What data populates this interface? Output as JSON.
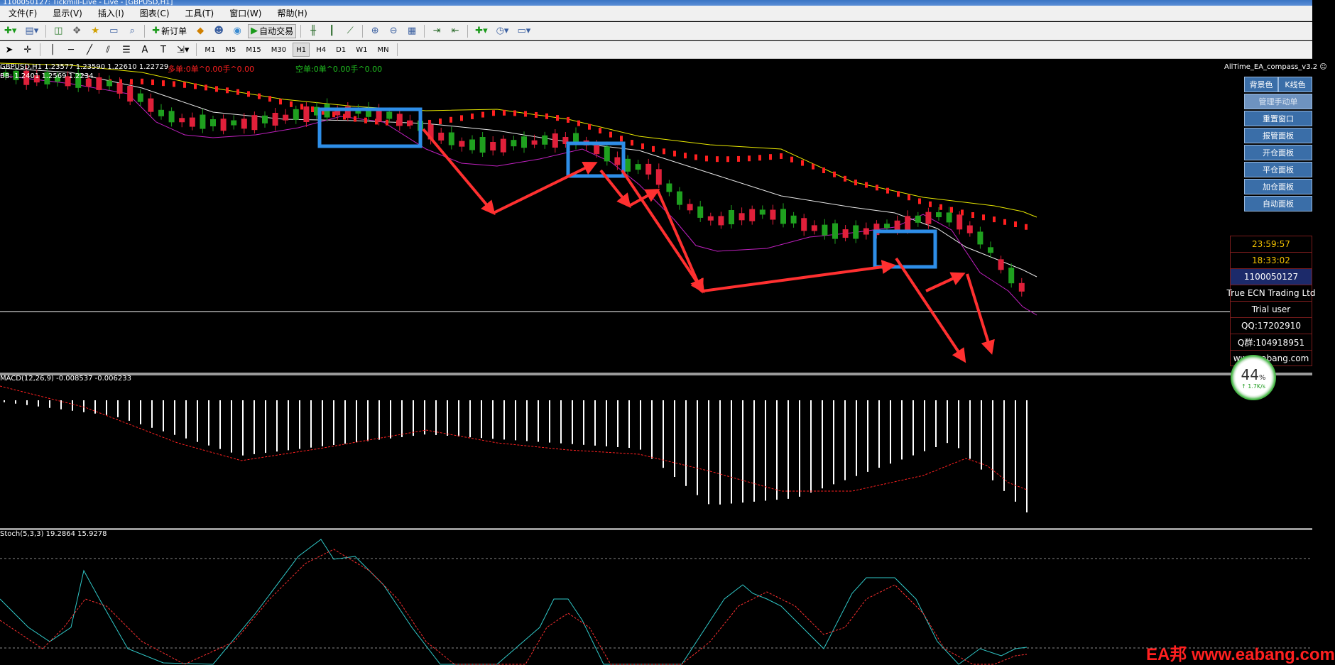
{
  "window": {
    "title": "1100050127: Tickmill-Live - Live - [GBPUSD,H1]"
  },
  "menu": [
    {
      "label": "文件(F)"
    },
    {
      "label": "显示(V)"
    },
    {
      "label": "插入(I)"
    },
    {
      "label": "图表(C)"
    },
    {
      "label": "工具(T)"
    },
    {
      "label": "窗口(W)"
    },
    {
      "label": "帮助(H)"
    }
  ],
  "toolbar": {
    "new_order": "新订单",
    "auto_trading": "自动交易",
    "timeframes": [
      "M1",
      "M5",
      "M15",
      "M30",
      "H1",
      "H4",
      "D1",
      "W1",
      "MN"
    ],
    "active_timeframe": "H1"
  },
  "chart": {
    "symbol_line": "GBPUSD,H1  1.23577 1.23590 1.22610 1.22729",
    "indicator_line": "BB: 1.2401  1.2569  1.2234",
    "buy_orders": "多单:0单^0.00手^0.00",
    "sell_orders": "空单:0单^0.00手^0.00",
    "ea_name": "AllTime_EA_compass_v3.2 ☺"
  },
  "macd": {
    "label": "MACD(12,26,9) -0.008537 -0.006233"
  },
  "stoch": {
    "label": "Stoch(5,3,3) 19.2864 15.9278"
  },
  "ea_panel": {
    "bg_color": "背景色",
    "k_color": "K线色",
    "manage_manual": "管理手动单",
    "reset_window": "重置窗口",
    "order_panel": "报管面板",
    "open_panel": "开仓面板",
    "close_panel": "平仓面板",
    "add_panel": "加仓面板",
    "auto_panel": "自动面板"
  },
  "info": {
    "time1": "23:59:57",
    "time2": "18:33:02",
    "account": "1100050127",
    "broker": "True ECN Trading Ltd",
    "user": "Trial user",
    "qq": "QQ:17202910",
    "qgroup": "Q群:104918951",
    "site": "www.eabang.com"
  },
  "speed": {
    "percent": "44",
    "unit": "%",
    "rate": "1.7K/s"
  },
  "watermark": "EA邦 www.eabang.com",
  "colors": {
    "bull": "#1fa01f",
    "bear": "#e0203a",
    "upper_band": "#e8e800",
    "mid_band": "#e8e8e8",
    "lower_band": "#c020c0",
    "sar": "#ff2020",
    "arrow": "#ff3030",
    "box": "#2e8ee8",
    "stoch_main": "#30c8c8",
    "stoch_signal": "#ff3030"
  }
}
